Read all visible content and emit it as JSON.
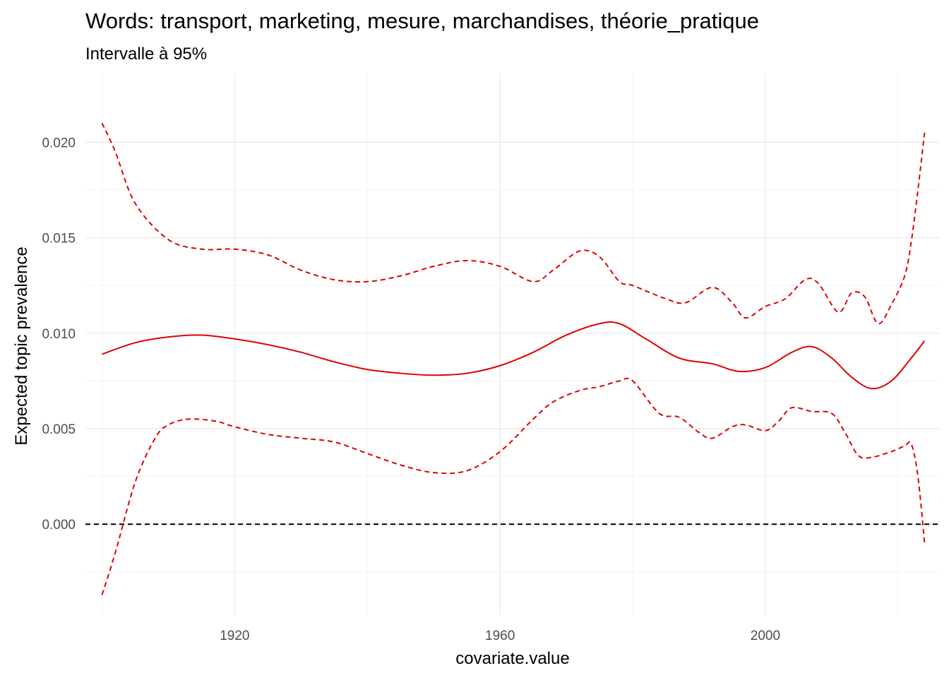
{
  "chart_data": {
    "type": "line",
    "title": "Words: transport, marketing, mesure, marchandises, théorie_pratique",
    "subtitle": "Intervalle à 95%",
    "xlabel": "covariate.value",
    "ylabel": "Expected topic prevalence",
    "xlim": [
      1897.5,
      2026.3
    ],
    "ylim": [
      -0.0048,
      0.0236
    ],
    "x_ticks": [
      1920,
      1960,
      2000
    ],
    "x_minor_ticks": [
      1900,
      1940,
      1980,
      2020
    ],
    "x_tick_labels": [
      "1920",
      "1960",
      "2000"
    ],
    "y_ticks": [
      0.0,
      0.005,
      0.01,
      0.015,
      0.02
    ],
    "y_minor_ticks": [
      -0.0025,
      0.0025,
      0.0075,
      0.0125,
      0.0175
    ],
    "y_tick_labels": [
      "0.000",
      "0.005",
      "0.010",
      "0.015",
      "0.020"
    ],
    "grid": true,
    "legend": "none",
    "reference_line": {
      "y": 0.0,
      "style": "dashed",
      "color": "#000000"
    },
    "series": [
      {
        "role": "estimate",
        "style": "solid",
        "color": "#e00000",
        "x": [
          1900,
          1905,
          1910,
          1915,
          1920,
          1925,
          1930,
          1935,
          1940,
          1945,
          1950,
          1955,
          1960,
          1965,
          1970,
          1975,
          1978,
          1982,
          1987,
          1992,
          1996,
          2000,
          2004,
          2007,
          2010,
          2013,
          2016,
          2019,
          2022,
          2024
        ],
        "y": [
          0.0089,
          0.0095,
          0.0098,
          0.0099,
          0.0097,
          0.0094,
          0.009,
          0.0085,
          0.0081,
          0.0079,
          0.0078,
          0.0079,
          0.0083,
          0.009,
          0.0099,
          0.0105,
          0.0105,
          0.0097,
          0.0087,
          0.0084,
          0.008,
          0.0082,
          0.009,
          0.0093,
          0.0087,
          0.0077,
          0.0071,
          0.0075,
          0.0087,
          0.0096
        ]
      },
      {
        "role": "upper 95% bound",
        "style": "dashed",
        "color": "#e00000",
        "x": [
          1900,
          1902,
          1905,
          1910,
          1915,
          1920,
          1925,
          1930,
          1935,
          1940,
          1945,
          1950,
          1955,
          1960,
          1965,
          1968,
          1972,
          1975,
          1978,
          1980,
          1985,
          1988,
          1992,
          1995,
          1997,
          2000,
          2003,
          2006,
          2008,
          2011,
          2013,
          2015,
          2017,
          2019,
          2021,
          2022,
          2023,
          2024
        ],
        "y": [
          0.021,
          0.0195,
          0.0168,
          0.0149,
          0.0144,
          0.0144,
          0.0141,
          0.0133,
          0.0128,
          0.0127,
          0.013,
          0.0135,
          0.0138,
          0.0135,
          0.0127,
          0.0133,
          0.0143,
          0.014,
          0.0127,
          0.0125,
          0.0118,
          0.0116,
          0.0124,
          0.0116,
          0.0108,
          0.0114,
          0.0118,
          0.0128,
          0.0126,
          0.0111,
          0.0121,
          0.0119,
          0.0105,
          0.0115,
          0.013,
          0.0148,
          0.0175,
          0.0205
        ]
      },
      {
        "role": "lower 95% bound",
        "style": "dashed",
        "color": "#e00000",
        "x": [
          1900,
          1902,
          1905,
          1908,
          1910,
          1913,
          1917,
          1920,
          1925,
          1930,
          1935,
          1940,
          1945,
          1950,
          1955,
          1960,
          1965,
          1968,
          1972,
          1975,
          1978,
          1980,
          1984,
          1987,
          1990,
          1992,
          1995,
          1997,
          2000,
          2002,
          2004,
          2007,
          2010,
          2012,
          2014,
          2016,
          2019,
          2021,
          2022,
          2023,
          2024
        ],
        "y": [
          -0.0037,
          -0.0015,
          0.0022,
          0.0045,
          0.0052,
          0.0055,
          0.0054,
          0.0051,
          0.0047,
          0.0045,
          0.0043,
          0.0037,
          0.0031,
          0.0027,
          0.0028,
          0.0038,
          0.0055,
          0.0064,
          0.007,
          0.0072,
          0.0075,
          0.0075,
          0.0058,
          0.0056,
          0.0048,
          0.0045,
          0.0051,
          0.0052,
          0.0049,
          0.0054,
          0.0061,
          0.0059,
          0.0058,
          0.0048,
          0.0036,
          0.0035,
          0.0038,
          0.0041,
          0.0042,
          0.0025,
          -0.001
        ]
      }
    ]
  }
}
